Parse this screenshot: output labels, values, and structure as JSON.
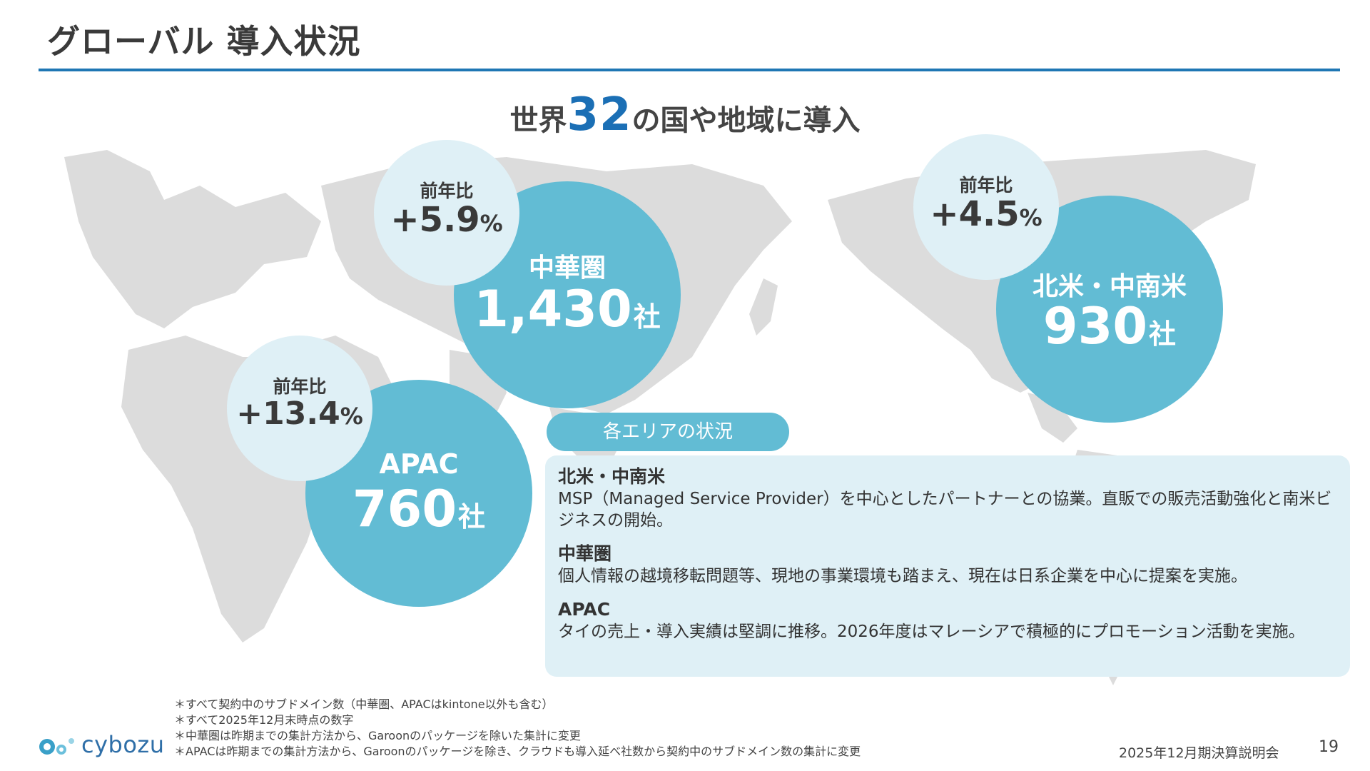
{
  "page": {
    "title": "グローバル 導入状況",
    "headline_pre": "世界",
    "headline_number": "32",
    "headline_post": "の国や地域に導入"
  },
  "regions": {
    "china": {
      "label": "中華圏",
      "count": "1,430",
      "unit": "社",
      "yoy_label": "前年比",
      "yoy_sign": "+",
      "yoy_value": "5.9",
      "yoy_pct": "%"
    },
    "americas": {
      "label": "北米・中南米",
      "count": "930",
      "unit": "社",
      "yoy_label": "前年比",
      "yoy_sign": "+",
      "yoy_value": "4.5",
      "yoy_pct": "%"
    },
    "apac": {
      "label": "APAC",
      "count": "760",
      "unit": "社",
      "yoy_label": "前年比",
      "yoy_sign": "+",
      "yoy_value": "13.4",
      "yoy_pct": "%"
    }
  },
  "status": {
    "pill_label": "各エリアの状況",
    "items": [
      {
        "heading": "北米・中南米",
        "body": "MSP（Managed Service Provider）を中心としたパートナーとの協業。直販での販売活動強化と南米ビジネスの開始。"
      },
      {
        "heading": "中華圏",
        "body": "個人情報の越境移転問題等、現地の事業環境も踏まえ、現在は日系企業を中心に提案を実施。"
      },
      {
        "heading": "APAC",
        "body": "タイの売上・導入実績は堅調に推移。2026年度はマレーシアで積極的にプロモーション活動を実施。"
      }
    ]
  },
  "footnotes": [
    "＊すべて契約中のサブドメイン数（中華圏、APACはkintone以外も含む）",
    "＊すべて2025年12月末時点の数字",
    "＊中華圏は昨期までの集計方法から、Garoonのパッケージを除いた集計に変更",
    "＊APACは昨期までの集計方法から、Garoonのパッケージを除き、クラウドも導入延べ社数から契約中のサブドメイン数の集計に変更"
  ],
  "footer": {
    "logo_text": "cybozu",
    "event": "2025年12月期決算説明会",
    "page_number": "19"
  },
  "colors": {
    "accent_blue": "#1b6fb5",
    "circle_blue": "#62bcd4",
    "circle_light": "#dff0f6",
    "map_gray": "#dcdcdc"
  }
}
